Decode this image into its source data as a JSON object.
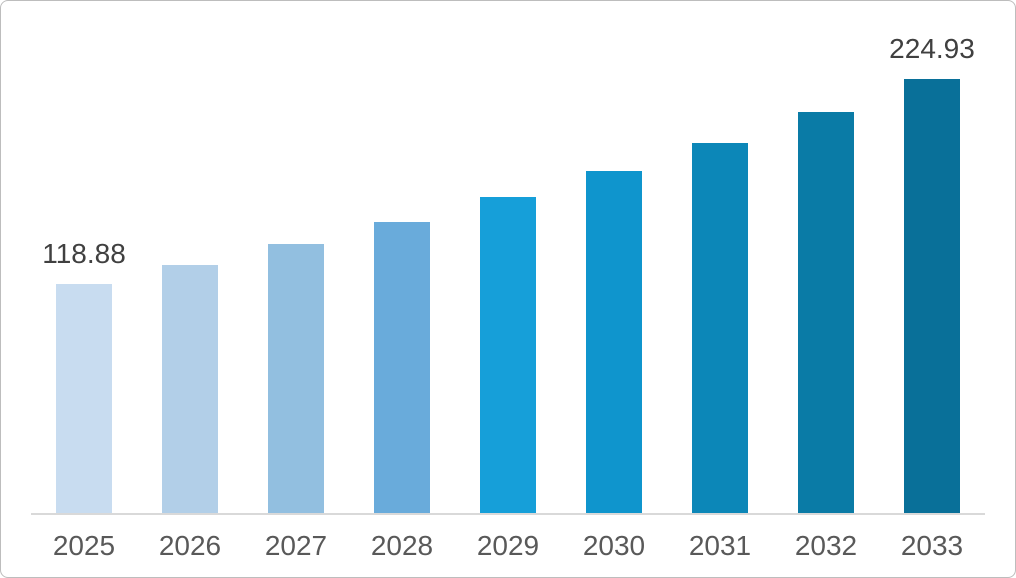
{
  "chart_data": {
    "type": "bar",
    "title": "",
    "xlabel": "",
    "ylabel": "",
    "categories": [
      "2025",
      "2026",
      "2027",
      "2028",
      "2029",
      "2030",
      "2031",
      "2032",
      "2033"
    ],
    "values": [
      118.88,
      128.74,
      139.42,
      150.99,
      163.52,
      177.09,
      191.78,
      207.7,
      224.93
    ],
    "data_labels": [
      "118.88",
      "",
      "",
      "",
      "",
      "",
      "",
      "",
      "224.93"
    ],
    "bar_colors": [
      "#c8dcf0",
      "#b2cfe8",
      "#92bfe0",
      "#69abdb",
      "#169fd9",
      "#0f95cd",
      "#0c87b8",
      "#0a7ba6",
      "#097099"
    ],
    "ylim": [
      0,
      224.93
    ],
    "grid": false,
    "legend": false,
    "data_label_color": "#404040",
    "tick_label_color": "#595959",
    "axis_line_color": "#d9d9d9"
  }
}
